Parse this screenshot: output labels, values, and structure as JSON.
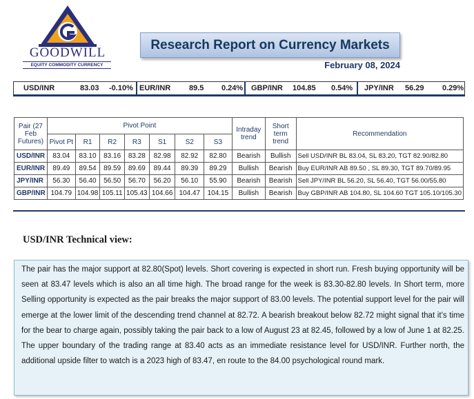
{
  "header": {
    "brand": "GOODWILL",
    "brand_sub": "EQUITY COMMODITY CURRENCY",
    "title": "Research Report on Currency Markets",
    "date": "February 08, 2024"
  },
  "colors": {
    "brand_blue": "#2a2f7a",
    "logo_orange": "#f0a21e",
    "title_bg": "#b8cbe6",
    "box_bg": "#e6f2f8"
  },
  "rates": [
    {
      "pair": "USD/INR",
      "value": "83.03",
      "change": "-0.10%"
    },
    {
      "pair": "EUR/INR",
      "value": "89.5",
      "change": "0.24%"
    },
    {
      "pair": "GBP/INR",
      "value": "104.85",
      "change": "0.54%"
    },
    {
      "pair": "JPY/INR",
      "value": "56.29",
      "change": "0.29%"
    }
  ],
  "pivot_table": {
    "headers": {
      "pair": "Pair (27 Feb Futures)",
      "pivot_group": "Pivot Point",
      "pivot_pt": "Pivot Pt",
      "r1": "R1",
      "r2": "R2",
      "r3": "R3",
      "s1": "S1",
      "s2": "S2",
      "s3": "S3",
      "intraday": "Intraday trend",
      "short_term": "Short term trend",
      "recommendation": "Recommendation"
    },
    "rows": [
      {
        "pair": "USD/INR",
        "pivot": "83.04",
        "r1": "83.10",
        "r2": "83.16",
        "r3": "83.28",
        "s1": "82.98",
        "s2": "82.92",
        "s3": "82.80",
        "intraday": "Bearish",
        "short_term": "Bullish",
        "rec": "Sell USD/INR BL 83.04, SL 83.20, TGT 82.90/82.80"
      },
      {
        "pair": "EUR/INR",
        "pivot": "89.49",
        "r1": "89.54",
        "r2": "89.59",
        "r3": "89.69",
        "s1": "89.44",
        "s2": "89.39",
        "s3": "89.29",
        "intraday": "Bullish",
        "short_term": "Bearish",
        "rec": "Buy EUR/INR AB 89.50 , SL 89.30, TGT 89.70/89.95"
      },
      {
        "pair": "JPY/INR",
        "pivot": "56.30",
        "r1": "56.40",
        "r2": "56.50",
        "r3": "56.70",
        "s1": "56.20",
        "s2": "56.10",
        "s3": "55.90",
        "intraday": "Bearish",
        "short_term": "Bearish",
        "rec": "Sell JPY/INR BL 56.20, SL 56.40, TGT 56.00/55.80"
      },
      {
        "pair": "GBP/INR",
        "pivot": "104.79",
        "r1": "104.98",
        "r2": "105.11",
        "r3": "105.43",
        "s1": "104.66",
        "s2": "104.47",
        "s3": "104.15",
        "intraday": "Bullish",
        "short_term": "Bearish",
        "rec": "Buy GBP/INR AB 104.80, SL 104.60 TGT 105.10/105.30"
      }
    ]
  },
  "technical_view": {
    "title": "USD/INR Technical view:",
    "body": "The pair has the major support at 82.80(Spot) levels. Short covering is expected in short run. Fresh buying opportunity will be seen at 83.47 levels which is also an all time high. The broad range for the week is 83.30-82.80 levels. In Short term, more Selling opportunity is expected as the pair breaks the major support of 83.00 levels. The potential support level for the pair will emerge at the lower limit of the descending trend channel at 82.72. A bearish breakout below 82.72 might signal that it’s time for the bear to charge again, possibly taking the pair back to a low of August 23 at 82.45, followed by a low of June 1 at 82.25. The upper boundary of the trading range at 83.40 acts as an immediate resistance level for USD/INR. Further north, the additional upside filter to watch is a 2023 high of 83.47, en route to the 84.00 psychological round mark."
  }
}
